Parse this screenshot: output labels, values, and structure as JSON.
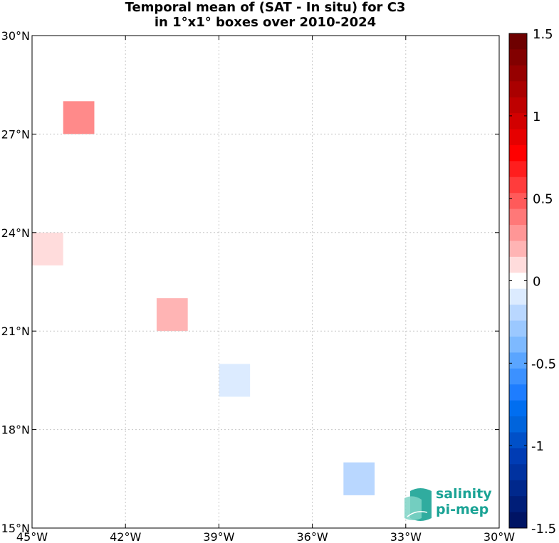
{
  "title": {
    "line1": "Temporal mean of (SAT - In situ) for C3",
    "line2": "in 1°x1° boxes over 2010-2024"
  },
  "map": {
    "lon_range": [
      -45,
      -30
    ],
    "lat_range": [
      15,
      30
    ],
    "lon_ticks": [
      {
        "value": -45,
        "label": "45°W"
      },
      {
        "value": -42,
        "label": "42°W"
      },
      {
        "value": -39,
        "label": "39°W"
      },
      {
        "value": -36,
        "label": "36°W"
      },
      {
        "value": -33,
        "label": "33°W"
      },
      {
        "value": -30,
        "label": "30°W"
      }
    ],
    "lat_ticks": [
      {
        "value": 15,
        "label": "15°N"
      },
      {
        "value": 18,
        "label": "18°N"
      },
      {
        "value": 21,
        "label": "21°N"
      },
      {
        "value": 24,
        "label": "24°N"
      },
      {
        "value": 27,
        "label": "27°N"
      },
      {
        "value": 30,
        "label": "30°N"
      }
    ],
    "grid": true,
    "boxes": [
      {
        "lon": -44,
        "lat": 27,
        "value": 0.4,
        "color": "#ff8a8a"
      },
      {
        "lon": -45,
        "lat": 23,
        "value": 0.15,
        "color": "#ffdcdc"
      },
      {
        "lon": -41,
        "lat": 21,
        "value": 0.3,
        "color": "#ffb4b4"
      },
      {
        "lon": -39,
        "lat": 19,
        "value": -0.15,
        "color": "#dcebff"
      },
      {
        "lon": -35,
        "lat": 16,
        "value": -0.3,
        "color": "#b9d7ff"
      }
    ]
  },
  "colorbar": {
    "range": [
      -1.5,
      1.5
    ],
    "ticks": [
      {
        "value": 1.5,
        "label": "1.5"
      },
      {
        "value": 1,
        "label": "1"
      },
      {
        "value": 0.5,
        "label": "0.5"
      },
      {
        "value": 0,
        "label": "0"
      },
      {
        "value": -0.5,
        "label": "-0.5"
      },
      {
        "value": -1,
        "label": "-1"
      },
      {
        "value": -1.5,
        "label": "-1.5"
      }
    ],
    "colors_top_to_bottom": [
      "#6e0000",
      "#820000",
      "#960000",
      "#aa0000",
      "#be0000",
      "#d20000",
      "#e60000",
      "#ff0000",
      "#ff1e1e",
      "#ff3c3c",
      "#ff5a5a",
      "#ff7878",
      "#ff9696",
      "#ffb4b4",
      "#ffdcdc",
      "#ffffff",
      "#dcebff",
      "#b9d7ff",
      "#9bc8ff",
      "#7db9ff",
      "#5aa5ff",
      "#3c91ff",
      "#1e7dff",
      "#006ef0",
      "#0064dc",
      "#0050c8",
      "#003cb4",
      "#0032a0",
      "#00288c",
      "#001e78",
      "#001464"
    ]
  },
  "logo": {
    "line1": "salinity",
    "line2": "pi-mep"
  }
}
